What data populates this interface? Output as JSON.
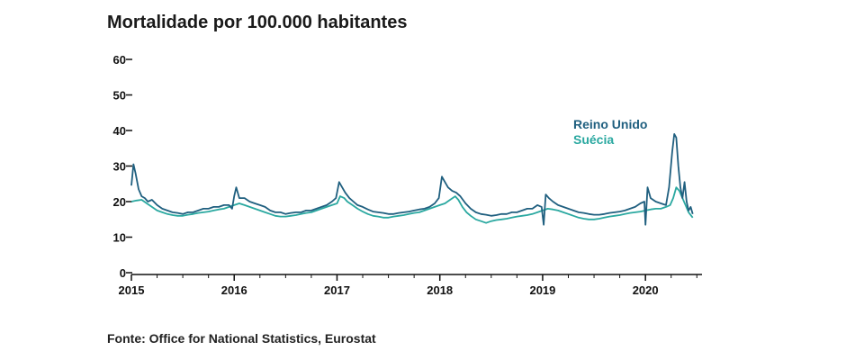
{
  "title": "Mortalidade por 100.000 habitantes",
  "source": "Fonte: Office for National Statistics, Eurostat",
  "chart_data": {
    "type": "line",
    "ylim": [
      0,
      60
    ],
    "yticks": [
      0,
      10,
      20,
      30,
      40,
      50,
      60
    ],
    "xlim": [
      2015,
      2020.55
    ],
    "xticks": [
      2015,
      2016,
      2017,
      2018,
      2019,
      2020
    ],
    "xtick_labels": [
      "2015",
      "2016",
      "2017",
      "2018",
      "2019",
      "2020"
    ],
    "grid": false,
    "legend_position": "top-right",
    "series": [
      {
        "name": "Reino Unido",
        "color": "#1f5f7f",
        "points": [
          [
            2015.0,
            24.5
          ],
          [
            2015.02,
            30.5
          ],
          [
            2015.04,
            28.0
          ],
          [
            2015.07,
            23.5
          ],
          [
            2015.1,
            21.5
          ],
          [
            2015.13,
            21.0
          ],
          [
            2015.16,
            20.0
          ],
          [
            2015.2,
            20.5
          ],
          [
            2015.25,
            19.0
          ],
          [
            2015.3,
            18.0
          ],
          [
            2015.35,
            17.5
          ],
          [
            2015.4,
            17.0
          ],
          [
            2015.45,
            16.8
          ],
          [
            2015.5,
            16.5
          ],
          [
            2015.55,
            17.0
          ],
          [
            2015.6,
            17.0
          ],
          [
            2015.65,
            17.5
          ],
          [
            2015.7,
            18.0
          ],
          [
            2015.75,
            18.0
          ],
          [
            2015.8,
            18.5
          ],
          [
            2015.85,
            18.5
          ],
          [
            2015.9,
            19.0
          ],
          [
            2015.95,
            19.0
          ],
          [
            2015.98,
            18.0
          ],
          [
            2016.0,
            21.5
          ],
          [
            2016.02,
            24.0
          ],
          [
            2016.05,
            21.0
          ],
          [
            2016.1,
            21.0
          ],
          [
            2016.15,
            20.0
          ],
          [
            2016.2,
            19.5
          ],
          [
            2016.25,
            19.0
          ],
          [
            2016.3,
            18.5
          ],
          [
            2016.35,
            17.5
          ],
          [
            2016.4,
            17.0
          ],
          [
            2016.45,
            17.0
          ],
          [
            2016.5,
            16.5
          ],
          [
            2016.55,
            16.8
          ],
          [
            2016.6,
            17.0
          ],
          [
            2016.65,
            17.0
          ],
          [
            2016.7,
            17.5
          ],
          [
            2016.75,
            17.5
          ],
          [
            2016.8,
            18.0
          ],
          [
            2016.85,
            18.5
          ],
          [
            2016.9,
            19.0
          ],
          [
            2016.95,
            20.0
          ],
          [
            2016.99,
            21.0
          ],
          [
            2017.02,
            25.5
          ],
          [
            2017.05,
            24.0
          ],
          [
            2017.08,
            22.5
          ],
          [
            2017.12,
            21.0
          ],
          [
            2017.16,
            20.0
          ],
          [
            2017.2,
            19.0
          ],
          [
            2017.25,
            18.5
          ],
          [
            2017.3,
            17.8
          ],
          [
            2017.35,
            17.2
          ],
          [
            2017.4,
            17.0
          ],
          [
            2017.45,
            16.8
          ],
          [
            2017.5,
            16.5
          ],
          [
            2017.55,
            16.5
          ],
          [
            2017.6,
            16.8
          ],
          [
            2017.65,
            17.0
          ],
          [
            2017.7,
            17.2
          ],
          [
            2017.75,
            17.5
          ],
          [
            2017.8,
            17.8
          ],
          [
            2017.85,
            18.0
          ],
          [
            2017.9,
            18.5
          ],
          [
            2017.95,
            19.5
          ],
          [
            2017.99,
            21.0
          ],
          [
            2018.02,
            27.0
          ],
          [
            2018.05,
            25.5
          ],
          [
            2018.08,
            24.0
          ],
          [
            2018.12,
            23.0
          ],
          [
            2018.16,
            22.5
          ],
          [
            2018.2,
            21.5
          ],
          [
            2018.25,
            19.5
          ],
          [
            2018.3,
            18.0
          ],
          [
            2018.35,
            17.0
          ],
          [
            2018.4,
            16.5
          ],
          [
            2018.45,
            16.3
          ],
          [
            2018.5,
            16.0
          ],
          [
            2018.55,
            16.2
          ],
          [
            2018.6,
            16.5
          ],
          [
            2018.65,
            16.5
          ],
          [
            2018.7,
            17.0
          ],
          [
            2018.75,
            17.0
          ],
          [
            2018.8,
            17.5
          ],
          [
            2018.85,
            18.0
          ],
          [
            2018.9,
            18.0
          ],
          [
            2018.95,
            19.0
          ],
          [
            2018.99,
            18.5
          ],
          [
            2019.01,
            13.5
          ],
          [
            2019.03,
            22.0
          ],
          [
            2019.06,
            21.0
          ],
          [
            2019.1,
            20.0
          ],
          [
            2019.15,
            19.0
          ],
          [
            2019.2,
            18.5
          ],
          [
            2019.25,
            18.0
          ],
          [
            2019.3,
            17.5
          ],
          [
            2019.35,
            17.0
          ],
          [
            2019.4,
            16.8
          ],
          [
            2019.45,
            16.5
          ],
          [
            2019.5,
            16.3
          ],
          [
            2019.55,
            16.3
          ],
          [
            2019.6,
            16.5
          ],
          [
            2019.65,
            16.8
          ],
          [
            2019.7,
            17.0
          ],
          [
            2019.75,
            17.2
          ],
          [
            2019.8,
            17.5
          ],
          [
            2019.85,
            18.0
          ],
          [
            2019.9,
            18.5
          ],
          [
            2019.95,
            19.5
          ],
          [
            2019.99,
            20.0
          ],
          [
            2020.0,
            13.5
          ],
          [
            2020.02,
            24.0
          ],
          [
            2020.05,
            21.0
          ],
          [
            2020.1,
            20.0
          ],
          [
            2020.15,
            19.5
          ],
          [
            2020.2,
            19.0
          ],
          [
            2020.23,
            24.0
          ],
          [
            2020.26,
            34.0
          ],
          [
            2020.28,
            39.0
          ],
          [
            2020.3,
            38.0
          ],
          [
            2020.32,
            30.0
          ],
          [
            2020.34,
            24.0
          ],
          [
            2020.36,
            21.0
          ],
          [
            2020.38,
            25.5
          ],
          [
            2020.4,
            20.0
          ],
          [
            2020.42,
            17.5
          ],
          [
            2020.44,
            18.5
          ],
          [
            2020.46,
            16.5
          ]
        ]
      },
      {
        "name": "Suécia",
        "color": "#2aa8a0",
        "points": [
          [
            2015.0,
            20.0
          ],
          [
            2015.05,
            20.3
          ],
          [
            2015.1,
            20.5
          ],
          [
            2015.15,
            19.5
          ],
          [
            2015.2,
            18.5
          ],
          [
            2015.25,
            17.5
          ],
          [
            2015.3,
            17.0
          ],
          [
            2015.35,
            16.5
          ],
          [
            2015.4,
            16.2
          ],
          [
            2015.45,
            16.0
          ],
          [
            2015.5,
            16.0
          ],
          [
            2015.55,
            16.3
          ],
          [
            2015.6,
            16.5
          ],
          [
            2015.65,
            16.8
          ],
          [
            2015.7,
            17.0
          ],
          [
            2015.75,
            17.2
          ],
          [
            2015.8,
            17.5
          ],
          [
            2015.85,
            17.8
          ],
          [
            2015.9,
            18.0
          ],
          [
            2015.95,
            18.5
          ],
          [
            2016.0,
            19.0
          ],
          [
            2016.05,
            19.5
          ],
          [
            2016.1,
            19.0
          ],
          [
            2016.15,
            18.5
          ],
          [
            2016.2,
            18.0
          ],
          [
            2016.25,
            17.5
          ],
          [
            2016.3,
            17.0
          ],
          [
            2016.35,
            16.5
          ],
          [
            2016.4,
            16.0
          ],
          [
            2016.45,
            15.8
          ],
          [
            2016.5,
            15.8
          ],
          [
            2016.55,
            16.0
          ],
          [
            2016.6,
            16.2
          ],
          [
            2016.65,
            16.5
          ],
          [
            2016.7,
            16.8
          ],
          [
            2016.75,
            17.0
          ],
          [
            2016.8,
            17.5
          ],
          [
            2016.85,
            18.0
          ],
          [
            2016.9,
            18.5
          ],
          [
            2016.95,
            19.0
          ],
          [
            2017.0,
            19.5
          ],
          [
            2017.03,
            21.5
          ],
          [
            2017.07,
            21.0
          ],
          [
            2017.1,
            20.0
          ],
          [
            2017.15,
            19.0
          ],
          [
            2017.2,
            18.0
          ],
          [
            2017.25,
            17.2
          ],
          [
            2017.3,
            16.5
          ],
          [
            2017.35,
            16.0
          ],
          [
            2017.4,
            15.8
          ],
          [
            2017.45,
            15.5
          ],
          [
            2017.5,
            15.5
          ],
          [
            2017.55,
            15.8
          ],
          [
            2017.6,
            16.0
          ],
          [
            2017.65,
            16.2
          ],
          [
            2017.7,
            16.5
          ],
          [
            2017.75,
            16.8
          ],
          [
            2017.8,
            17.0
          ],
          [
            2017.85,
            17.5
          ],
          [
            2017.9,
            18.0
          ],
          [
            2017.95,
            18.5
          ],
          [
            2018.0,
            19.0
          ],
          [
            2018.05,
            19.5
          ],
          [
            2018.1,
            20.5
          ],
          [
            2018.15,
            21.5
          ],
          [
            2018.18,
            20.5
          ],
          [
            2018.22,
            18.5
          ],
          [
            2018.26,
            17.0
          ],
          [
            2018.3,
            16.0
          ],
          [
            2018.35,
            15.0
          ],
          [
            2018.4,
            14.5
          ],
          [
            2018.45,
            14.0
          ],
          [
            2018.5,
            14.5
          ],
          [
            2018.55,
            14.8
          ],
          [
            2018.6,
            15.0
          ],
          [
            2018.65,
            15.2
          ],
          [
            2018.7,
            15.5
          ],
          [
            2018.75,
            15.8
          ],
          [
            2018.8,
            16.0
          ],
          [
            2018.85,
            16.2
          ],
          [
            2018.9,
            16.5
          ],
          [
            2018.95,
            17.0
          ],
          [
            2019.0,
            17.5
          ],
          [
            2019.05,
            18.0
          ],
          [
            2019.1,
            17.8
          ],
          [
            2019.15,
            17.5
          ],
          [
            2019.2,
            17.0
          ],
          [
            2019.25,
            16.5
          ],
          [
            2019.3,
            16.0
          ],
          [
            2019.35,
            15.5
          ],
          [
            2019.4,
            15.2
          ],
          [
            2019.45,
            15.0
          ],
          [
            2019.5,
            15.0
          ],
          [
            2019.55,
            15.2
          ],
          [
            2019.6,
            15.5
          ],
          [
            2019.65,
            15.8
          ],
          [
            2019.7,
            16.0
          ],
          [
            2019.75,
            16.2
          ],
          [
            2019.8,
            16.5
          ],
          [
            2019.85,
            16.8
          ],
          [
            2019.9,
            17.0
          ],
          [
            2019.95,
            17.2
          ],
          [
            2020.0,
            17.5
          ],
          [
            2020.05,
            17.8
          ],
          [
            2020.1,
            18.0
          ],
          [
            2020.15,
            18.0
          ],
          [
            2020.2,
            18.5
          ],
          [
            2020.24,
            19.0
          ],
          [
            2020.27,
            21.0
          ],
          [
            2020.3,
            24.0
          ],
          [
            2020.33,
            23.0
          ],
          [
            2020.36,
            21.0
          ],
          [
            2020.39,
            19.0
          ],
          [
            2020.42,
            17.0
          ],
          [
            2020.46,
            15.5
          ]
        ]
      }
    ]
  }
}
